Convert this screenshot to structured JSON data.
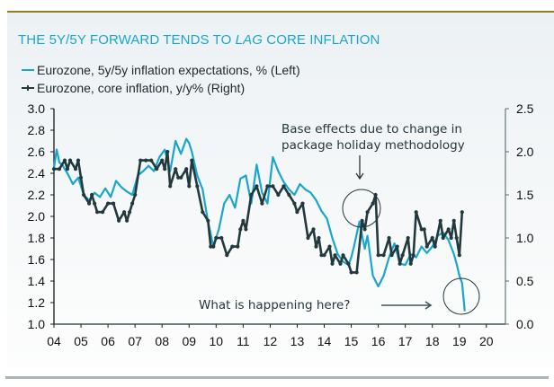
{
  "chart_data": {
    "type": "line",
    "title": "THE 5Y/5Y FORWARD TENDS TO",
    "title_emphasis": "LAG",
    "title_suffix": "CORE INFLATION",
    "colors": {
      "title": "#1aa6cc",
      "expectations": "#1aa6cc",
      "core": "#22393d",
      "annotation": "#24373b",
      "rule_top": "#8f7f22"
    },
    "legend": [
      {
        "label": "Eurozone, 5y/5y inflation expectations, % (Left)",
        "series": "expectations"
      },
      {
        "label": "Eurozone, core inflation, y/y% (Right)",
        "series": "core"
      }
    ],
    "x_ticks": [
      "04",
      "05",
      "06",
      "07",
      "08",
      "09",
      "10",
      "11",
      "12",
      "13",
      "14",
      "15",
      "16",
      "17",
      "18",
      "19",
      "20"
    ],
    "xlim": [
      2004,
      2020.6
    ],
    "y_left": {
      "ticks": [
        "3.0",
        "2.8",
        "2.6",
        "2.4",
        "2.2",
        "2.0",
        "1.8",
        "1.6",
        "1.4",
        "1.2",
        "1.0"
      ],
      "ylim": [
        1.0,
        3.0
      ]
    },
    "y_right": {
      "ticks": [
        "2.5",
        "2.0",
        "1.5",
        "1.0",
        "0.5",
        "0.0"
      ],
      "ylim": [
        0.0,
        2.5
      ]
    },
    "series": [
      {
        "name": "Eurozone, 5y/5y inflation expectations, % (Left)",
        "axis": "left",
        "x": [
          2004.0,
          2004.1,
          2004.2,
          2004.3,
          2004.5,
          2004.7,
          2004.9,
          2005.1,
          2005.3,
          2005.5,
          2005.7,
          2005.9,
          2006.1,
          2006.3,
          2006.5,
          2006.7,
          2006.9,
          2007.1,
          2007.3,
          2007.5,
          2007.7,
          2007.9,
          2008.1,
          2008.3,
          2008.5,
          2008.7,
          2008.9,
          2009.0,
          2009.1,
          2009.3,
          2009.5,
          2009.7,
          2009.9,
          2010.1,
          2010.3,
          2010.5,
          2010.7,
          2010.9,
          2011.1,
          2011.3,
          2011.5,
          2011.7,
          2011.9,
          2012.1,
          2012.3,
          2012.5,
          2012.7,
          2012.9,
          2013.1,
          2013.3,
          2013.5,
          2013.7,
          2013.9,
          2014.1,
          2014.3,
          2014.5,
          2014.7,
          2014.9,
          2015.0,
          2015.1,
          2015.3,
          2015.5,
          2015.6,
          2015.8,
          2016.0,
          2016.2,
          2016.4,
          2016.6,
          2016.8,
          2017.0,
          2017.2,
          2017.4,
          2017.6,
          2017.8,
          2018.0,
          2018.2,
          2018.4,
          2018.6,
          2018.8,
          2018.9,
          2019.0,
          2019.1,
          2019.2
        ],
        "values": [
          2.45,
          2.62,
          2.5,
          2.48,
          2.4,
          2.3,
          2.36,
          2.2,
          2.15,
          2.22,
          2.18,
          2.26,
          2.18,
          2.33,
          2.27,
          2.23,
          2.2,
          2.38,
          2.42,
          2.47,
          2.42,
          2.55,
          2.62,
          2.42,
          2.7,
          2.58,
          2.72,
          2.68,
          2.6,
          2.38,
          2.25,
          1.95,
          1.72,
          1.88,
          2.12,
          2.2,
          2.08,
          2.35,
          2.38,
          2.12,
          2.48,
          2.22,
          2.12,
          2.55,
          2.42,
          2.32,
          2.25,
          2.2,
          2.3,
          2.25,
          2.22,
          2.15,
          2.05,
          1.98,
          1.8,
          1.65,
          1.58,
          1.55,
          1.62,
          1.72,
          1.95,
          1.7,
          1.82,
          1.45,
          1.35,
          1.45,
          1.62,
          1.75,
          1.56,
          1.55,
          1.65,
          1.62,
          1.72,
          1.66,
          1.72,
          1.82,
          1.85,
          1.78,
          1.65,
          1.56,
          1.45,
          1.38,
          1.12
        ]
      },
      {
        "name": "Eurozone, core inflation, y/y% (Right)",
        "axis": "right",
        "x": [
          2004.0,
          2004.2,
          2004.4,
          2004.5,
          2004.6,
          2004.8,
          2004.9,
          2005.0,
          2005.1,
          2005.3,
          2005.4,
          2005.5,
          2005.6,
          2005.8,
          2006.0,
          2006.2,
          2006.4,
          2006.6,
          2006.7,
          2006.8,
          2006.9,
          2007.0,
          2007.2,
          2007.4,
          2007.6,
          2007.8,
          2008.0,
          2008.1,
          2008.2,
          2008.3,
          2008.5,
          2008.6,
          2008.7,
          2008.9,
          2009.0,
          2009.1,
          2009.3,
          2009.5,
          2009.7,
          2009.8,
          2009.9,
          2010.0,
          2010.2,
          2010.4,
          2010.6,
          2010.8,
          2010.9,
          2011.0,
          2011.1,
          2011.3,
          2011.5,
          2011.7,
          2011.9,
          2012.1,
          2012.3,
          2012.5,
          2012.7,
          2012.9,
          2013.0,
          2013.2,
          2013.4,
          2013.6,
          2013.7,
          2013.8,
          2013.9,
          2014.0,
          2014.2,
          2014.3,
          2014.4,
          2014.6,
          2014.7,
          2014.9,
          2015.0,
          2015.2,
          2015.4,
          2015.5,
          2015.6,
          2015.8,
          2015.9,
          2016.0,
          2016.2,
          2016.4,
          2016.5,
          2016.7,
          2016.8,
          2016.9,
          2017.1,
          2017.2,
          2017.3,
          2017.4,
          2017.6,
          2017.7,
          2017.8,
          2018.0,
          2018.1,
          2018.3,
          2018.4,
          2018.6,
          2018.7,
          2018.8,
          2018.9,
          2019.0,
          2019.1
        ],
        "values": [
          1.8,
          1.8,
          1.9,
          1.8,
          1.9,
          1.8,
          1.9,
          1.7,
          1.5,
          1.4,
          1.5,
          1.4,
          1.3,
          1.3,
          1.4,
          1.4,
          1.2,
          1.3,
          1.2,
          1.3,
          1.4,
          1.5,
          1.9,
          1.9,
          1.9,
          1.8,
          1.9,
          1.8,
          2.0,
          1.6,
          1.8,
          1.7,
          1.7,
          1.8,
          1.6,
          1.9,
          1.6,
          1.3,
          1.2,
          0.9,
          0.9,
          1.0,
          1.0,
          0.8,
          0.9,
          0.9,
          1.1,
          1.2,
          1.1,
          1.5,
          1.6,
          1.4,
          1.6,
          1.6,
          1.5,
          1.6,
          1.5,
          1.4,
          1.3,
          1.4,
          1.0,
          1.1,
          0.9,
          1.0,
          0.8,
          0.8,
          0.9,
          0.7,
          0.8,
          0.7,
          0.8,
          0.7,
          0.6,
          0.6,
          1.2,
          1.1,
          1.3,
          1.4,
          1.5,
          0.8,
          0.8,
          1.0,
          0.8,
          0.9,
          0.7,
          0.8,
          1.0,
          0.7,
          0.8,
          1.3,
          1.1,
          1.1,
          0.9,
          1.0,
          0.9,
          1.2,
          1.0,
          1.1,
          1.0,
          1.2,
          1.0,
          0.8,
          1.3
        ]
      }
    ],
    "annotations": [
      {
        "text_lines": [
          "Base effects due to change in",
          "package holiday methodology"
        ],
        "target": "2015.5 core spike (circled)"
      },
      {
        "text_lines": [
          "What is happening here?"
        ],
        "target": "2019 5y/5y drop (circled)"
      }
    ]
  }
}
